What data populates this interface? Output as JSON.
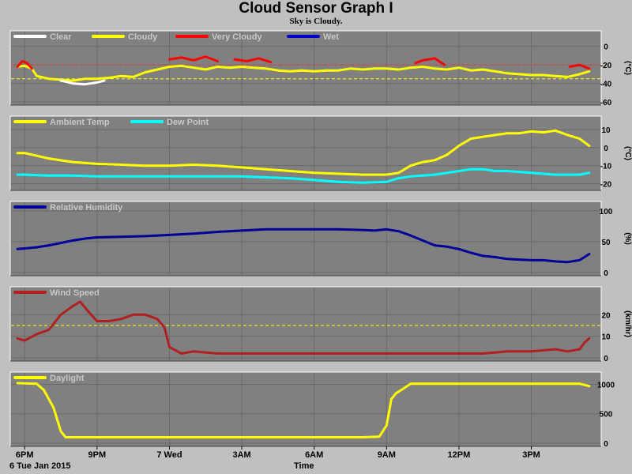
{
  "title": "Cloud Sensor Graph I",
  "subtitle": "Sky is Cloudy.",
  "date_label": "6 Tue Jan 2015",
  "xlabel": "Time",
  "x_ticks": [
    "6PM",
    "9PM",
    "7 Wed",
    "3AM",
    "6AM",
    "9AM",
    "12PM",
    "3PM"
  ],
  "x_tick_hours": [
    0,
    3,
    6,
    9,
    12,
    15,
    18,
    21
  ],
  "x_range_hours": [
    -0.4,
    23.7
  ],
  "colors": {
    "background": "#c0c0c0",
    "plot": "#808080",
    "grid": "#6a6a6a",
    "threshold_red": "#ff4040",
    "threshold_yellow": "#ffff00"
  },
  "chart_data": [
    {
      "type": "line",
      "ylabel": "(°C)",
      "ylim": [
        -60,
        10
      ],
      "yticks": [
        -60,
        -40,
        -20,
        0
      ],
      "thresholds": [
        {
          "value": -20,
          "color": "#ff4040"
        },
        {
          "value": -35,
          "color": "#ffff00"
        }
      ],
      "legend": [
        {
          "name": "Clear",
          "color": "#ffffff"
        },
        {
          "name": "Cloudy",
          "color": "#ffff00"
        },
        {
          "name": "Very Cloudy",
          "color": "#ff0000"
        },
        {
          "name": "Wet",
          "color": "#0000cc"
        }
      ],
      "series": [
        {
          "color": "#ffff00",
          "x": [
            -0.3,
            0,
            0.3,
            0.5,
            1,
            1.5,
            2,
            2.5,
            3,
            3.5,
            4,
            4.5,
            5,
            5.5,
            6,
            6.5,
            7,
            7.5,
            8,
            8.5,
            9,
            9.5,
            10,
            10.5,
            11,
            11.5,
            12,
            12.5,
            13,
            13.5,
            14,
            14.5,
            15,
            15.5,
            16,
            16.5,
            17,
            17.5,
            18,
            18.5,
            19,
            19.5,
            20,
            20.5,
            21,
            21.5,
            22,
            22.5,
            23,
            23.4
          ],
          "y": [
            -22,
            -21,
            -24,
            -32,
            -35,
            -36,
            -37,
            -35,
            -35,
            -34,
            -32,
            -33,
            -28,
            -25,
            -22,
            -21,
            -23,
            -25,
            -22,
            -23,
            -22,
            -23,
            -24,
            -26,
            -27,
            -26,
            -27,
            -26,
            -26,
            -24,
            -25,
            -24,
            -24,
            -25,
            -23,
            -22,
            -24,
            -25,
            -23,
            -26,
            -25,
            -27,
            -29,
            -30,
            -31,
            -31,
            -32,
            -33,
            -30,
            -27
          ]
        },
        {
          "color": "#ffffff",
          "x": [
            1.5,
            2,
            2.5,
            3,
            3.3
          ],
          "y": [
            -37,
            -40,
            -41,
            -39,
            -37
          ]
        },
        {
          "color": "#ff0000",
          "x": [
            -0.3,
            -0.1,
            0.1,
            0.3
          ],
          "y": [
            -22,
            -16,
            -18,
            -24
          ]
        },
        {
          "color": "#ff0000",
          "x": [
            6,
            6.5,
            7,
            7.5,
            8
          ],
          "y": [
            -14,
            -12,
            -15,
            -11,
            -16
          ]
        },
        {
          "color": "#ff0000",
          "x": [
            8.7,
            9.2,
            9.7,
            10.2
          ],
          "y": [
            -14,
            -16,
            -13,
            -17
          ]
        },
        {
          "color": "#ff0000",
          "x": [
            16.2,
            16.5,
            17,
            17.4
          ],
          "y": [
            -18,
            -15,
            -13,
            -20
          ]
        },
        {
          "color": "#ff0000",
          "x": [
            22.6,
            23,
            23.4
          ],
          "y": [
            -22,
            -20,
            -24
          ]
        }
      ]
    },
    {
      "type": "line",
      "ylabel": "(°C)",
      "ylim": [
        -22,
        14
      ],
      "yticks": [
        -20,
        -10,
        0,
        10
      ],
      "legend": [
        {
          "name": "Ambient Temp",
          "color": "#ffff00"
        },
        {
          "name": "Dew Point",
          "color": "#00ffff"
        }
      ],
      "series": [
        {
          "color": "#ffff00",
          "x": [
            -0.3,
            0,
            1,
            2,
            3,
            4,
            5,
            6,
            7,
            8,
            9,
            10,
            11,
            12,
            13,
            14,
            15,
            15.5,
            16,
            16.5,
            17,
            17.5,
            18,
            18.5,
            19,
            19.5,
            20,
            20.5,
            21,
            21.5,
            22,
            22.5,
            23,
            23.4
          ],
          "y": [
            -3,
            -3,
            -6,
            -8,
            -9,
            -9.5,
            -10,
            -10,
            -9.5,
            -10,
            -11,
            -12,
            -13,
            -14,
            -14.5,
            -15,
            -15,
            -14,
            -10,
            -8,
            -7,
            -4,
            1,
            5,
            6,
            7,
            8,
            8,
            9,
            8.5,
            9.5,
            7,
            5,
            1
          ]
        },
        {
          "color": "#00ffff",
          "x": [
            -0.3,
            0,
            1,
            2,
            3,
            4,
            5,
            6,
            7,
            8,
            9,
            10,
            11,
            12,
            13,
            14,
            15,
            15.5,
            16,
            17,
            18,
            18.5,
            19,
            19.5,
            20,
            21,
            22,
            23,
            23.4
          ],
          "y": [
            -15,
            -15,
            -15.5,
            -15.5,
            -16,
            -16,
            -16,
            -16,
            -16,
            -16,
            -16,
            -16.5,
            -17,
            -18,
            -19,
            -19.5,
            -19,
            -17,
            -16,
            -15,
            -13,
            -12,
            -12,
            -13,
            -13,
            -14,
            -15,
            -15,
            -14
          ]
        }
      ]
    },
    {
      "type": "line",
      "ylabel": "(%)",
      "ylim": [
        0,
        105
      ],
      "yticks": [
        0,
        50,
        100
      ],
      "legend": [
        {
          "name": "Relative Humidity",
          "color": "#000099"
        }
      ],
      "series": [
        {
          "color": "#000099",
          "x": [
            -0.3,
            0,
            0.5,
            1,
            1.5,
            2,
            2.5,
            3,
            4,
            5,
            6,
            7,
            8,
            9,
            10,
            11,
            12,
            13,
            14,
            14.5,
            15,
            15.5,
            16,
            16.5,
            17,
            17.5,
            18,
            18.5,
            19,
            19.5,
            20,
            20.5,
            21,
            21.5,
            22,
            22.5,
            23,
            23.4
          ],
          "y": [
            38,
            39,
            41,
            44,
            48,
            52,
            55,
            57,
            58,
            59,
            61,
            63,
            66,
            68,
            70,
            70,
            70,
            70,
            69,
            68,
            70,
            67,
            60,
            52,
            44,
            42,
            38,
            32,
            27,
            25,
            22,
            21,
            20,
            20,
            18,
            17,
            20,
            30
          ]
        }
      ]
    },
    {
      "type": "line",
      "ylabel": "(km/hr)",
      "ylim": [
        0,
        30
      ],
      "yticks": [
        0,
        10,
        20
      ],
      "thresholds": [
        {
          "value": 15,
          "color": "#ffff00"
        }
      ],
      "legend": [
        {
          "name": "Wind Speed",
          "color": "#b02020"
        }
      ],
      "series": [
        {
          "color": "#b02020",
          "x": [
            -0.3,
            0,
            0.5,
            1,
            1.5,
            2,
            2.3,
            2.6,
            3,
            3.5,
            4,
            4.5,
            5,
            5.5,
            5.8,
            6,
            6.5,
            7,
            8,
            9,
            10,
            11,
            12,
            13,
            14,
            15,
            16,
            17,
            18,
            19,
            20,
            21,
            22,
            22.5,
            23,
            23.2,
            23.4
          ],
          "y": [
            9,
            8,
            11,
            13,
            20,
            24,
            26,
            22,
            17,
            17,
            18,
            20,
            20,
            18,
            14,
            5,
            2,
            3,
            2,
            2,
            2,
            2,
            2,
            2,
            2,
            2,
            2,
            2,
            2,
            2,
            3,
            3,
            4,
            3,
            4,
            7,
            9
          ]
        }
      ]
    },
    {
      "type": "line",
      "ylabel": "",
      "ylim": [
        0,
        1100
      ],
      "yticks": [
        0,
        500,
        1000
      ],
      "legend": [
        {
          "name": "Daylight",
          "color": "#ffff00"
        }
      ],
      "series": [
        {
          "color": "#ffff00",
          "x": [
            -0.3,
            0.5,
            0.8,
            1.2,
            1.5,
            1.7,
            2,
            3,
            4,
            5,
            6,
            7,
            8,
            9,
            10,
            11,
            12,
            13,
            14,
            14.7,
            15,
            15.2,
            15.4,
            15.6,
            16,
            18,
            20,
            22,
            23,
            23.4
          ],
          "y": [
            1020,
            1010,
            900,
            600,
            200,
            100,
            100,
            100,
            100,
            100,
            100,
            100,
            100,
            100,
            100,
            100,
            100,
            100,
            100,
            110,
            300,
            750,
            850,
            900,
            1010,
            1010,
            1010,
            1010,
            1010,
            970
          ]
        }
      ]
    }
  ]
}
